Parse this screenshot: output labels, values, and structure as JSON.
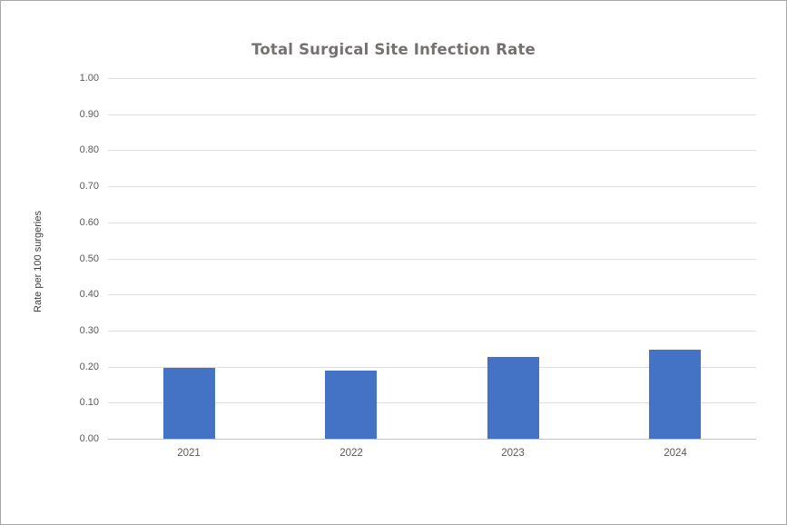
{
  "chart_data": {
    "type": "bar",
    "title": "Total Surgical Site Infection Rate",
    "xlabel": "",
    "ylabel": "Rate per 100 surgeries",
    "categories": [
      "2021",
      "2022",
      "2023",
      "2024"
    ],
    "values": [
      0.196,
      0.188,
      0.226,
      0.248
    ],
    "ylim": [
      0,
      1
    ],
    "ytick_step": 0.1,
    "ytick_labels": [
      "0.00",
      "0.10",
      "0.20",
      "0.30",
      "0.40",
      "0.50",
      "0.60",
      "0.70",
      "0.80",
      "0.90",
      "1.00"
    ],
    "grid": true,
    "legend": false,
    "colors": {
      "bar": "#4472c4",
      "gridline": "#dedede",
      "axis_line": "#c3c3c3",
      "title_text": "#767171",
      "tick_text": "#595959",
      "axis_title_text": "#3b3b3b"
    }
  }
}
